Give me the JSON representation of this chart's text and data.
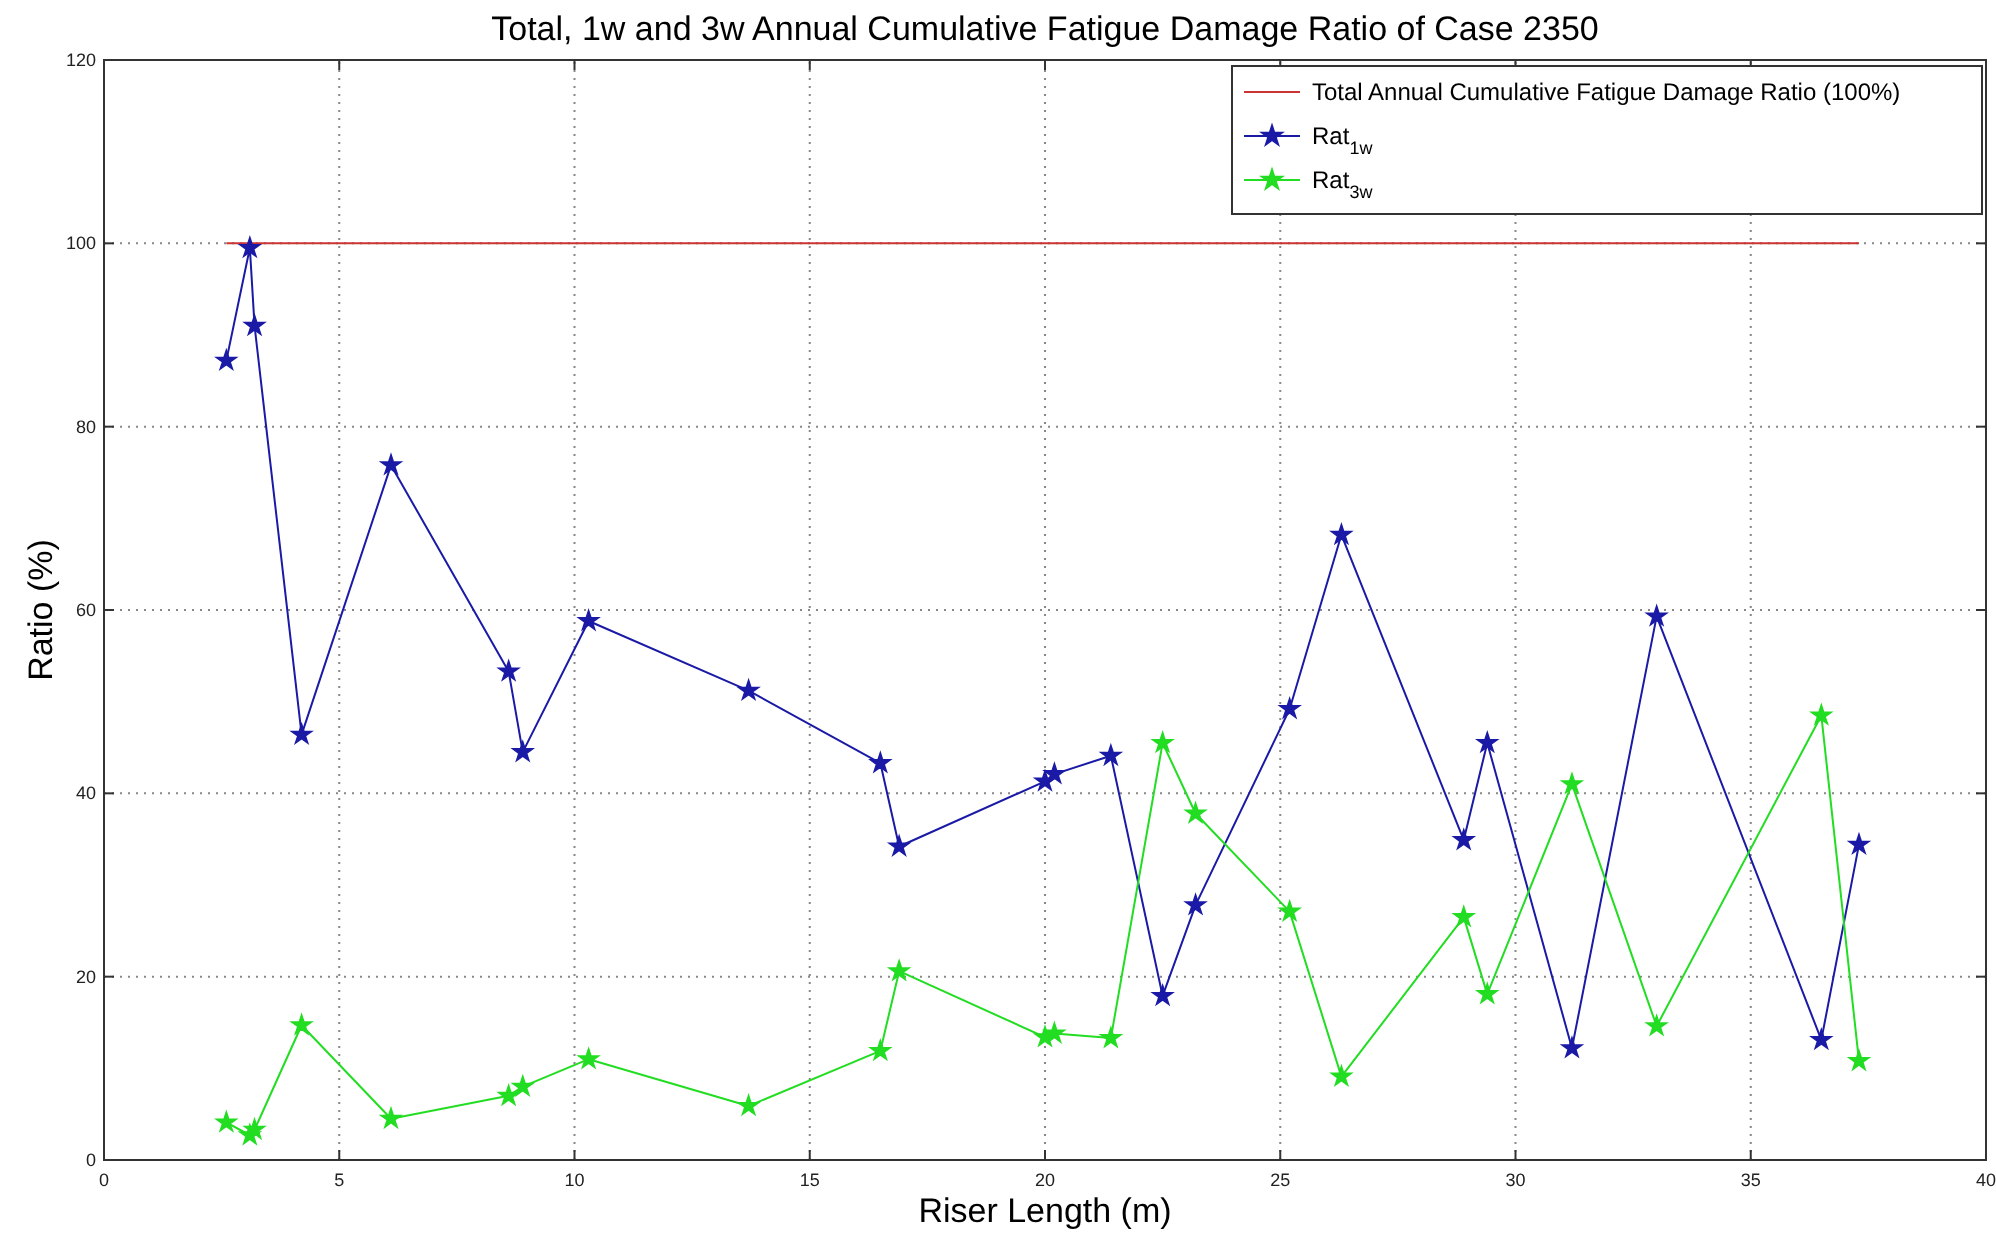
{
  "chart_data": {
    "type": "line",
    "title": "Total, 1w and 3w Annual Cumulative Fatigue Damage Ratio of Case 2350",
    "xlabel": "Riser Length (m)",
    "ylabel": "Ratio (%)",
    "xlim": [
      0,
      40
    ],
    "xticks": [
      0,
      5,
      10,
      15,
      20,
      25,
      30,
      35,
      40
    ],
    "ylim": [
      0,
      120
    ],
    "yticks": [
      0,
      20,
      40,
      60,
      80,
      100,
      120
    ],
    "grid": true,
    "legend": "top right",
    "x": [
      2.6,
      3.1,
      3.2,
      4.2,
      6.1,
      8.6,
      8.9,
      10.3,
      13.7,
      16.5,
      16.9,
      20.0,
      20.2,
      21.4,
      22.5,
      23.2,
      25.2,
      26.3,
      28.9,
      29.4,
      31.2,
      33.0,
      36.5,
      37.3
    ],
    "series": [
      {
        "name": "Total Annual Cumulative Fatigue Damage Ratio (100%)",
        "color": "#cc3333",
        "marker": "none",
        "x": [
          2.6,
          37.3
        ],
        "values": [
          100,
          100
        ]
      },
      {
        "name": "Rat$_{1w}$",
        "color": "#1a1aa6",
        "marker": "star",
        "values": [
          87.2,
          99.5,
          91,
          46.4,
          75.8,
          53.3,
          44.5,
          58.8,
          51.2,
          43.3,
          34.2,
          41.3,
          42.1,
          44.1,
          17.9,
          27.8,
          49.2,
          68.2,
          34.9,
          45.5,
          12.2,
          59.3,
          13.1,
          34.4
        ]
      },
      {
        "name": "Rat$_{3w}$",
        "color": "#22dd22",
        "marker": "star",
        "values": [
          4.1,
          2.7,
          3.3,
          14.7,
          4.5,
          7.0,
          8.0,
          11.0,
          5.9,
          11.9,
          20.6,
          13.4,
          13.8,
          13.3,
          45.5,
          37.8,
          27.1,
          9.1,
          26.5,
          18.1,
          41.0,
          14.6,
          48.5,
          10.8
        ]
      }
    ]
  }
}
